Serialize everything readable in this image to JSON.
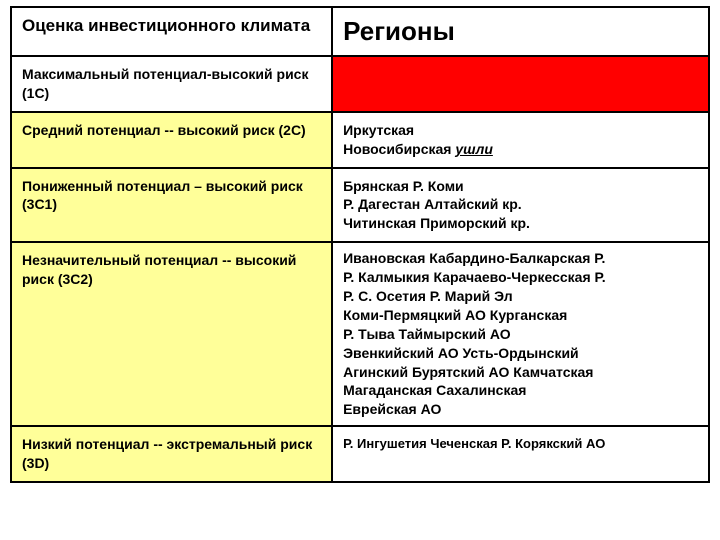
{
  "header": {
    "left": "Оценка инвестиционного климата",
    "right": "Регионы"
  },
  "rows": {
    "r1c": {
      "label": "Максимальный потенциал-высокий риск (1С)"
    },
    "r2c": {
      "label": "Средний потенциал -- высокий риск (2С)",
      "line1": "Иркутская",
      "line2_a": "Новосибирская ",
      "line2_b": "ушли"
    },
    "r3c1": {
      "label": "Пониженный потенциал – высокий риск (3С1)",
      "l1": "Брянская                  Р.  Коми",
      "l2": "Р.  Дагестан              Алтайский кр.",
      "l3": "Читинская                Приморский кр."
    },
    "r3c2": {
      "label": "Незначительный потенциал -- высокий риск (3С2)",
      "l1": "Ивановская    Кабардино-Балкарская Р.",
      "l2": "Р.  Калмыкия  Карачаево-Черкесская Р.",
      "l3": "Р.  С.  Осетия                   Р.  Марий Эл",
      "l4": "Коми-Пермяцкий АО        Курганская",
      "l5": "Р.  Тыва                            Таймырский АО",
      "l6": "Эвенкийский АО           Усть-Ордынский",
      "l7": "Агинский Бурятский  АО    Камчатская",
      "l8": "Магаданская                    Сахалинская",
      "l9": "Еврейская АО"
    },
    "r3d": {
      "label": "Низкий потенциал -- экстремальный риск (3D)",
      "l1": "Р.  Ингушетия Чеченская Р. Корякский АО"
    }
  }
}
